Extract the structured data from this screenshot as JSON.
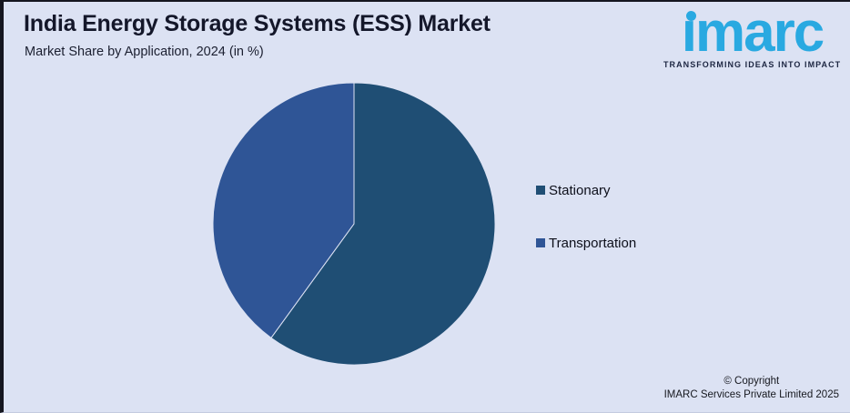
{
  "header": {
    "title": "India Energy Storage Systems (ESS) Market",
    "subtitle": "Market Share by Application, 2024 (in %)"
  },
  "logo": {
    "wordmark": "imarc",
    "tagline": "TRANSFORMING IDEAS INTO IMPACT"
  },
  "chart_data": {
    "type": "pie",
    "title": "India Energy Storage Systems (ESS) Market",
    "subtitle": "Market Share by Application, 2024 (in %)",
    "unit": "%",
    "start_angle_deg": 0,
    "direction": "clockwise",
    "data_labels_shown": false,
    "legend_position": "right",
    "slices": [
      {
        "label": "Stationary",
        "value": 60,
        "color": "#1f4e74"
      },
      {
        "label": "Transportation",
        "value": 40,
        "color": "#2f5596"
      }
    ]
  },
  "footer": {
    "copyright_line1": "© Copyright",
    "copyright_line2": "IMARC Services Private Limited 2025"
  },
  "colors": {
    "background": "#dce2f3",
    "frame_border": "#15161f",
    "title_text": "#14172a",
    "logo_blue": "#29a9e1",
    "tagline_text": "#1d2642",
    "slice_stationary": "#1f4e74",
    "slice_transportation": "#2f5596"
  }
}
